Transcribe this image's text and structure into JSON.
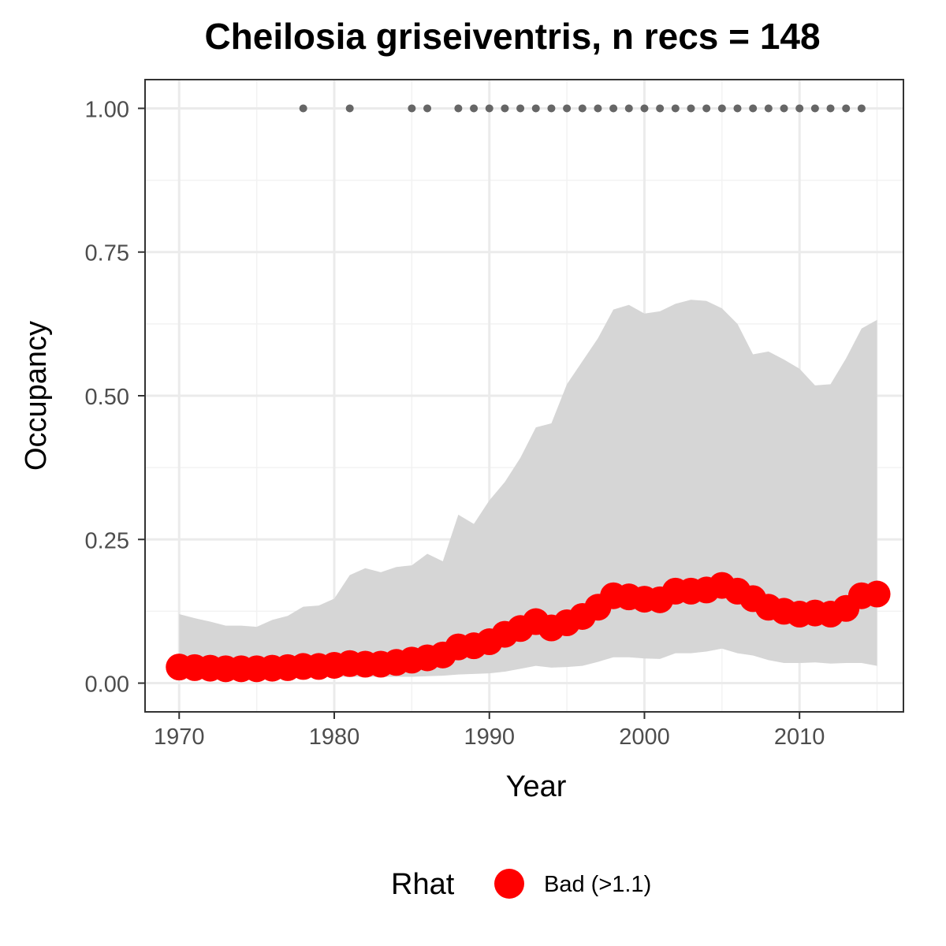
{
  "chart_data": {
    "type": "line",
    "title": "Cheilosia griseiventris, n recs = 148",
    "xlabel": "Year",
    "ylabel": "Occupancy",
    "xlim": [
      1967.8,
      2016.7
    ],
    "ylim": [
      -0.05,
      1.05
    ],
    "x_ticks": [
      1970,
      1980,
      1990,
      2000,
      2010
    ],
    "y_ticks": [
      0.0,
      0.25,
      0.5,
      0.75,
      1.0
    ],
    "y_tick_labels": [
      "0.00",
      "0.25",
      "0.50",
      "0.75",
      "1.00"
    ],
    "grid": true,
    "series": [
      {
        "name": "Bad (>1.1)",
        "color": "#ff0000",
        "x": [
          1970,
          1971,
          1972,
          1973,
          1974,
          1975,
          1976,
          1977,
          1978,
          1979,
          1980,
          1981,
          1982,
          1983,
          1984,
          1985,
          1986,
          1987,
          1988,
          1989,
          1990,
          1991,
          1992,
          1993,
          1994,
          1995,
          1996,
          1997,
          1998,
          1999,
          2000,
          2001,
          2002,
          2003,
          2004,
          2005,
          2006,
          2007,
          2008,
          2009,
          2010,
          2011,
          2012,
          2013,
          2014,
          2015
        ],
        "y": [
          0.028,
          0.027,
          0.026,
          0.025,
          0.025,
          0.025,
          0.026,
          0.027,
          0.029,
          0.029,
          0.031,
          0.034,
          0.033,
          0.033,
          0.036,
          0.04,
          0.044,
          0.049,
          0.063,
          0.065,
          0.072,
          0.085,
          0.095,
          0.107,
          0.096,
          0.105,
          0.116,
          0.132,
          0.152,
          0.15,
          0.146,
          0.145,
          0.16,
          0.16,
          0.162,
          0.17,
          0.16,
          0.147,
          0.132,
          0.125,
          0.12,
          0.122,
          0.12,
          0.13,
          0.152,
          0.155
        ]
      }
    ],
    "interval": {
      "x": [
        1970,
        1971,
        1972,
        1973,
        1974,
        1975,
        1976,
        1977,
        1978,
        1979,
        1980,
        1981,
        1982,
        1983,
        1984,
        1985,
        1986,
        1987,
        1988,
        1989,
        1990,
        1991,
        1992,
        1993,
        1994,
        1995,
        1996,
        1997,
        1998,
        1999,
        2000,
        2001,
        2002,
        2003,
        2004,
        2005,
        2006,
        2007,
        2008,
        2009,
        2010,
        2011,
        2012,
        2013,
        2014,
        2015
      ],
      "lower": [
        0.015,
        0.013,
        0.012,
        0.011,
        0.011,
        0.011,
        0.011,
        0.011,
        0.011,
        0.011,
        0.011,
        0.011,
        0.011,
        0.011,
        0.011,
        0.011,
        0.012,
        0.013,
        0.015,
        0.016,
        0.017,
        0.02,
        0.025,
        0.03,
        0.027,
        0.028,
        0.03,
        0.037,
        0.045,
        0.045,
        0.043,
        0.042,
        0.052,
        0.052,
        0.055,
        0.06,
        0.052,
        0.048,
        0.04,
        0.035,
        0.035,
        0.036,
        0.034,
        0.035,
        0.035,
        0.03
      ],
      "upper": [
        0.12,
        0.113,
        0.107,
        0.1,
        0.1,
        0.098,
        0.11,
        0.117,
        0.133,
        0.135,
        0.147,
        0.188,
        0.2,
        0.193,
        0.202,
        0.205,
        0.225,
        0.212,
        0.293,
        0.277,
        0.318,
        0.35,
        0.392,
        0.445,
        0.452,
        0.52,
        0.56,
        0.6,
        0.65,
        0.658,
        0.643,
        0.647,
        0.66,
        0.667,
        0.665,
        0.652,
        0.625,
        0.572,
        0.577,
        0.563,
        0.547,
        0.518,
        0.52,
        0.565,
        0.617,
        0.632
      ],
      "color": "#d6d6d6"
    },
    "record_years": {
      "x": [
        1978,
        1981,
        1985,
        1986,
        1988,
        1989,
        1990,
        1991,
        1992,
        1993,
        1994,
        1995,
        1996,
        1997,
        1998,
        1999,
        2000,
        2001,
        2002,
        2003,
        2004,
        2005,
        2006,
        2007,
        2008,
        2009,
        2010,
        2011,
        2012,
        2013,
        2014
      ],
      "y": 1.0,
      "color": "#666666"
    },
    "legend": {
      "title": "Rhat",
      "position": "bottom",
      "entries": [
        {
          "label": "Bad (>1.1)",
          "color": "#ff0000"
        }
      ]
    }
  }
}
